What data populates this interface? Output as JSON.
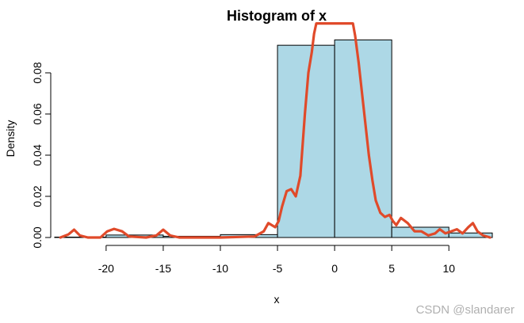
{
  "chart_data": {
    "type": "bar",
    "title": "Histogram of x",
    "xlabel": "x",
    "ylabel": "Density",
    "xlim": [
      -24.5,
      13.8
    ],
    "ylim": [
      0,
      0.09
    ],
    "x_ticks": [
      -20,
      -15,
      -10,
      -5,
      0,
      5,
      10
    ],
    "y_ticks": [
      0.0,
      0.02,
      0.04,
      0.06,
      0.08
    ],
    "y_tick_labels": [
      "0.00",
      "0.02",
      "0.04",
      "0.06",
      "0.08"
    ],
    "bins": [
      {
        "start": -25,
        "end": -20,
        "density": 0.0002
      },
      {
        "start": -20,
        "end": -15,
        "density": 0.0012
      },
      {
        "start": -15,
        "end": -10,
        "density": 0.0006
      },
      {
        "start": -10,
        "end": -5,
        "density": 0.0014
      },
      {
        "start": -5,
        "end": 0,
        "density": 0.0934
      },
      {
        "start": 0,
        "end": 5,
        "density": 0.096
      },
      {
        "start": 5,
        "end": 10,
        "density": 0.005
      },
      {
        "start": 10,
        "end": 15,
        "density": 0.0022
      }
    ],
    "bar_fill": "#add8e6",
    "bar_stroke": "#000000",
    "density_curve": {
      "color": "#e04a2a",
      "points": [
        [
          -24.0,
          0.0
        ],
        [
          -23.3,
          0.0015
        ],
        [
          -22.8,
          0.0038
        ],
        [
          -22.3,
          0.001
        ],
        [
          -21.6,
          0.0
        ],
        [
          -20.5,
          0.0
        ],
        [
          -19.9,
          0.003
        ],
        [
          -19.3,
          0.0042
        ],
        [
          -18.6,
          0.003
        ],
        [
          -18.0,
          0.0005
        ],
        [
          -16.5,
          0.0
        ],
        [
          -15.6,
          0.001
        ],
        [
          -15.0,
          0.0038
        ],
        [
          -14.4,
          0.001
        ],
        [
          -13.6,
          0.0
        ],
        [
          -10.0,
          0.0
        ],
        [
          -7.0,
          0.0005
        ],
        [
          -6.2,
          0.003
        ],
        [
          -5.8,
          0.007
        ],
        [
          -5.2,
          0.005
        ],
        [
          -4.9,
          0.008
        ],
        [
          -4.6,
          0.015
        ],
        [
          -4.2,
          0.0225
        ],
        [
          -3.8,
          0.0235
        ],
        [
          -3.4,
          0.02
        ],
        [
          -3.0,
          0.03
        ],
        [
          -2.6,
          0.06
        ],
        [
          -2.3,
          0.08
        ],
        [
          -2.0,
          0.09
        ],
        [
          -1.8,
          0.099
        ],
        [
          -1.6,
          0.104
        ],
        [
          1.6,
          0.104
        ],
        [
          1.8,
          0.098
        ],
        [
          2.1,
          0.085
        ],
        [
          2.4,
          0.07
        ],
        [
          2.7,
          0.055
        ],
        [
          3.0,
          0.04
        ],
        [
          3.3,
          0.028
        ],
        [
          3.6,
          0.018
        ],
        [
          4.0,
          0.012
        ],
        [
          4.4,
          0.01
        ],
        [
          4.8,
          0.011
        ],
        [
          5.1,
          0.008
        ],
        [
          5.4,
          0.006
        ],
        [
          5.8,
          0.0095
        ],
        [
          6.4,
          0.007
        ],
        [
          7.0,
          0.003
        ],
        [
          7.6,
          0.003
        ],
        [
          8.2,
          0.001
        ],
        [
          8.8,
          0.002
        ],
        [
          9.2,
          0.004
        ],
        [
          9.7,
          0.002
        ],
        [
          10.2,
          0.003
        ],
        [
          10.7,
          0.004
        ],
        [
          11.2,
          0.002
        ],
        [
          11.7,
          0.005
        ],
        [
          12.1,
          0.007
        ],
        [
          12.5,
          0.003
        ],
        [
          13.0,
          0.001
        ],
        [
          13.6,
          0.0
        ]
      ]
    }
  },
  "watermark": "CSDN @slandarer"
}
